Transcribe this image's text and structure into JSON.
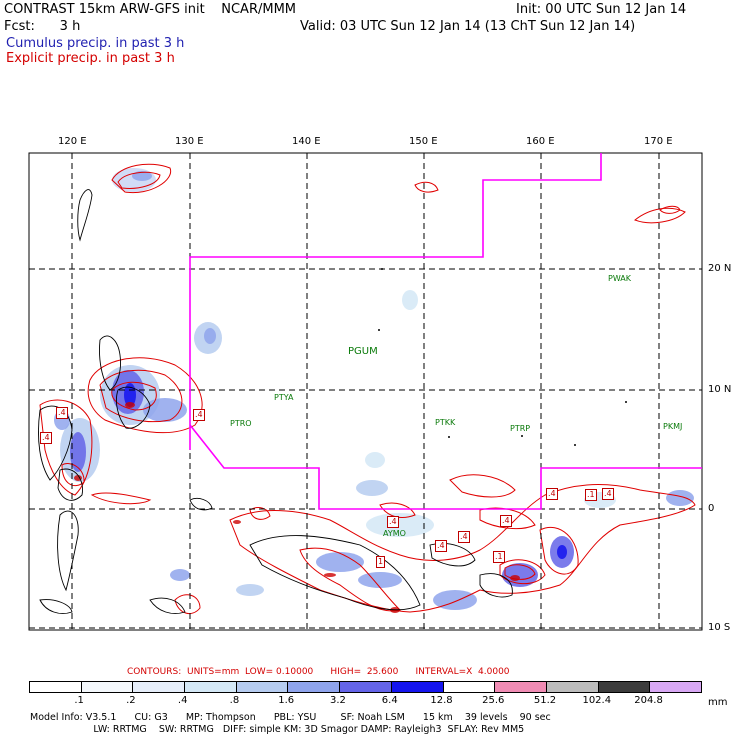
{
  "header": {
    "model_line": "CONTRAST 15km ARW-GFS init    NCAR/MMM",
    "init_line": "Init: 00 UTC Sun 12 Jan 14",
    "fcst_line": "Fcst:      3 h",
    "valid_line": "Valid: 03 UTC Sun 12 Jan 14 (13 ChT Sun 12 Jan 14)",
    "cumulus_line": "Cumulus precip. in past 3 h",
    "explicit_line": "Explicit precip. in past 3 h"
  },
  "map": {
    "lon_labels": [
      "120 E",
      "130 E",
      "140 E",
      "150 E",
      "160 E",
      "170 E"
    ],
    "lat_labels": [
      "20 N",
      "10 N",
      "0",
      "10 S"
    ],
    "stations": [
      {
        "id": "PWAK"
      },
      {
        "id": "PGUM"
      },
      {
        "id": "PTYA"
      },
      {
        "id": "PTRO"
      },
      {
        "id": "PTKK"
      },
      {
        "id": "PTRP"
      },
      {
        "id": "PKMJ"
      },
      {
        "id": "AYMO"
      }
    ],
    "contour_labels": [
      ".4",
      ".4",
      ".4",
      ".4",
      ".4",
      ".4",
      ".4",
      ".4",
      ".1",
      ".4",
      "1",
      ".1"
    ],
    "colors": {
      "boundary": "#ff00ff",
      "contour": "#e00000",
      "coast": "#000000",
      "cumulus_text": "#1f1fb0",
      "explicit_text": "#d40000",
      "station_text": "#0a7a0a"
    }
  },
  "contours_info": {
    "line": "CONTOURS:  UNITS=mm  LOW= 0.10000      HIGH=  25.600      INTERVAL=X  4.0000"
  },
  "colorbar": {
    "values": [
      ".1",
      ".2",
      ".4",
      ".8",
      "1.6",
      "3.2",
      "6.4",
      "12.8",
      "25.6",
      "51.2",
      "102.4",
      "204.8"
    ],
    "unit": "mm",
    "colors": [
      "#ffffff",
      "#f4f8fc",
      "#e6eefa",
      "#d4e8f6",
      "#b6ccf0",
      "#8fa4ec",
      "#6464e8",
      "#1414ee",
      "#ffffff",
      "#f08cb4",
      "#bcbcbc",
      "#3c3c3c",
      "#d8a8f4"
    ]
  },
  "model_info": {
    "line1": "Model Info: V3.5.1      CU: G3      MP: Thompson      PBL: YSU        SF: Noah LSM      15 km    39 levels    90 sec",
    "line2": "                     LW: RRTMG    SW: RRTMG   DIFF: simple KM: 3D Smagor DAMP: Rayleigh3  SFLAY: Rev MM5"
  }
}
